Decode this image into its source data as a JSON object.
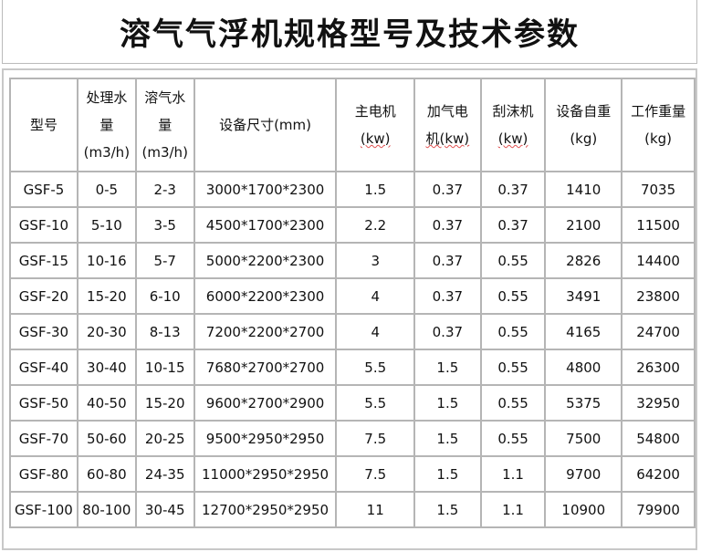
{
  "title": "溶气气浮机规格型号及技术参数",
  "headers": [
    [
      "型号"
    ],
    [
      "处理水",
      "量",
      "(m3/h)"
    ],
    [
      "溶气水",
      "量",
      "(m3/h)"
    ],
    [
      "设备尺寸(mm)"
    ],
    [
      "主电机",
      "(kw)"
    ],
    [
      "加气电",
      "机(kw)"
    ],
    [
      "刮沫机",
      "(kw)"
    ],
    [
      "设备自重",
      "(kg)"
    ],
    [
      "工作重量",
      "(kg)"
    ]
  ],
  "rows": [
    [
      "GSF-5",
      "0-5",
      "2-3",
      "3000*1700*2300",
      "1.5",
      "0.37",
      "0.37",
      "1410",
      "7035"
    ],
    [
      "GSF-10",
      "5-10",
      "3-5",
      "4500*1700*2300",
      "2.2",
      "0.37",
      "0.37",
      "2100",
      "11500"
    ],
    [
      "GSF-15",
      "10-16",
      "5-7",
      "5000*2200*2300",
      "3",
      "0.37",
      "0.55",
      "2826",
      "14400"
    ],
    [
      "GSF-20",
      "15-20",
      "6-10",
      "6000*2200*2300",
      "4",
      "0.37",
      "0.55",
      "3491",
      "23800"
    ],
    [
      "GSF-30",
      "20-30",
      "8-13",
      "7200*2200*2700",
      "4",
      "0.37",
      "0.55",
      "4165",
      "24700"
    ],
    [
      "GSF-40",
      "30-40",
      "10-15",
      "7680*2700*2700",
      "5.5",
      "1.5",
      "0.55",
      "4800",
      "26300"
    ],
    [
      "GSF-50",
      "40-50",
      "15-20",
      "9600*2700*2900",
      "5.5",
      "1.5",
      "0.55",
      "5375",
      "32950"
    ],
    [
      "GSF-70",
      "50-60",
      "20-25",
      "9500*2950*2950",
      "7.5",
      "1.5",
      "0.55",
      "7500",
      "54800"
    ],
    [
      "GSF-80",
      "60-80",
      "24-35",
      "11000*2950*2950",
      "7.5",
      "1.5",
      "1.1",
      "9700",
      "64200"
    ],
    [
      "GSF-100",
      "80-100",
      "30-45",
      "12700*2950*2950",
      "11",
      "1.5",
      "1.1",
      "10900",
      "79900"
    ]
  ]
}
